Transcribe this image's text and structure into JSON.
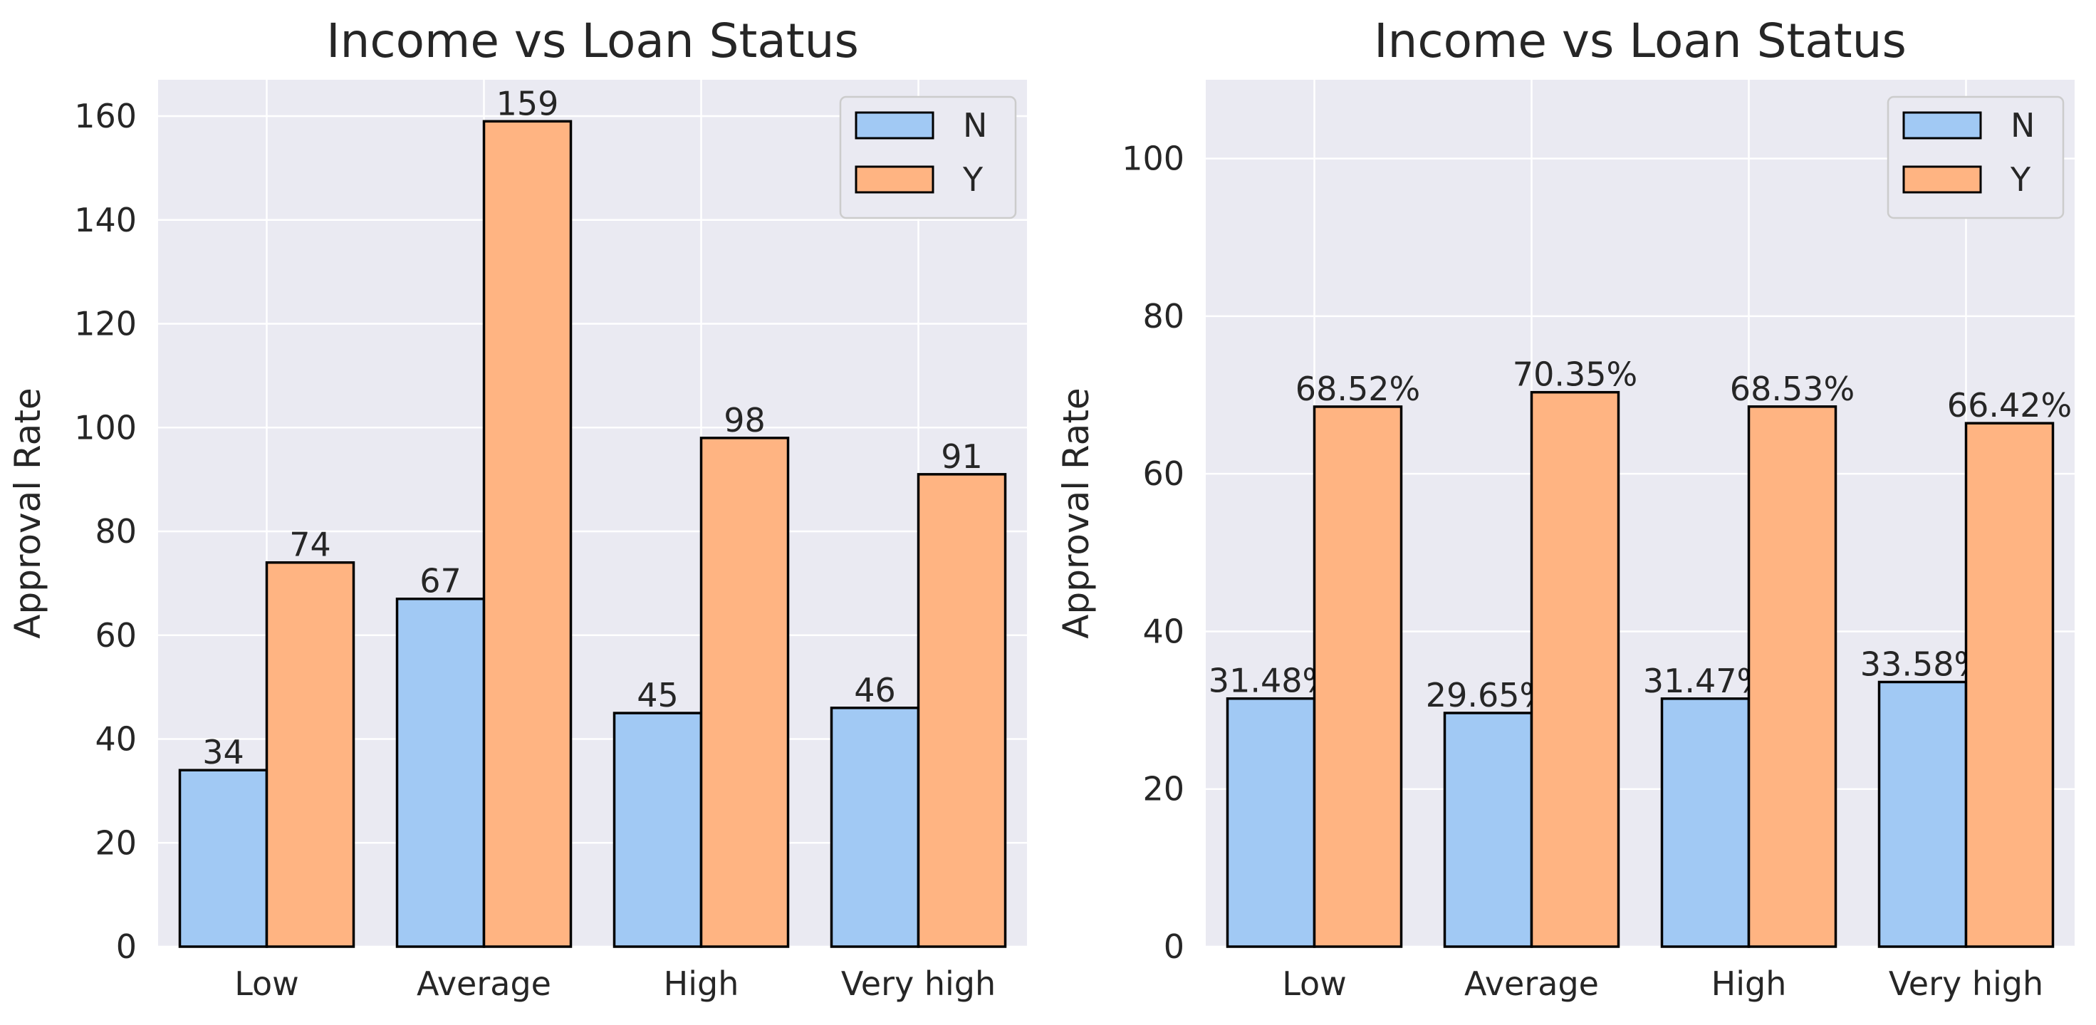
{
  "colors": {
    "background": "#ffffff",
    "plot_background": "#eaeaf2",
    "grid": "#ffffff",
    "text": "#262626",
    "bar_edge": "#000000",
    "legend_border": "#cccccc"
  },
  "chart_data": [
    {
      "type": "bar",
      "title": "Income vs Loan Status",
      "xlabel": "",
      "ylabel": "Approval Rate",
      "categories": [
        "Low",
        "Average",
        "High",
        "Very high"
      ],
      "series": [
        {
          "name": "N",
          "values": [
            34,
            67,
            45,
            46
          ],
          "labels": [
            "34",
            "67",
            "45",
            "46"
          ],
          "color": "#a1c9f4"
        },
        {
          "name": "Y",
          "values": [
            74,
            159,
            98,
            91
          ],
          "labels": [
            "74",
            "159",
            "98",
            "91"
          ],
          "color": "#ffb482"
        }
      ],
      "ylim": [
        0,
        167
      ],
      "yticks": [
        0,
        20,
        40,
        60,
        80,
        100,
        120,
        140,
        160
      ],
      "grid": true,
      "legend": "top-right"
    },
    {
      "type": "bar",
      "title": "Income vs Loan Status",
      "xlabel": "",
      "ylabel": "Approval Rate",
      "categories": [
        "Low",
        "Average",
        "High",
        "Very high"
      ],
      "series": [
        {
          "name": "N",
          "values": [
            31.48,
            29.65,
            31.47,
            33.58
          ],
          "labels": [
            "31.48%",
            "29.65%",
            "31.47%",
            "33.58%"
          ],
          "color": "#a1c9f4"
        },
        {
          "name": "Y",
          "values": [
            68.52,
            70.35,
            68.53,
            66.42
          ],
          "labels": [
            "68.52%",
            "70.35%",
            "68.53%",
            "66.42%"
          ],
          "color": "#ffb482"
        }
      ],
      "ylim": [
        0,
        110
      ],
      "yticks": [
        0,
        20,
        40,
        60,
        80,
        100
      ],
      "grid": true,
      "legend": "top-right"
    }
  ]
}
